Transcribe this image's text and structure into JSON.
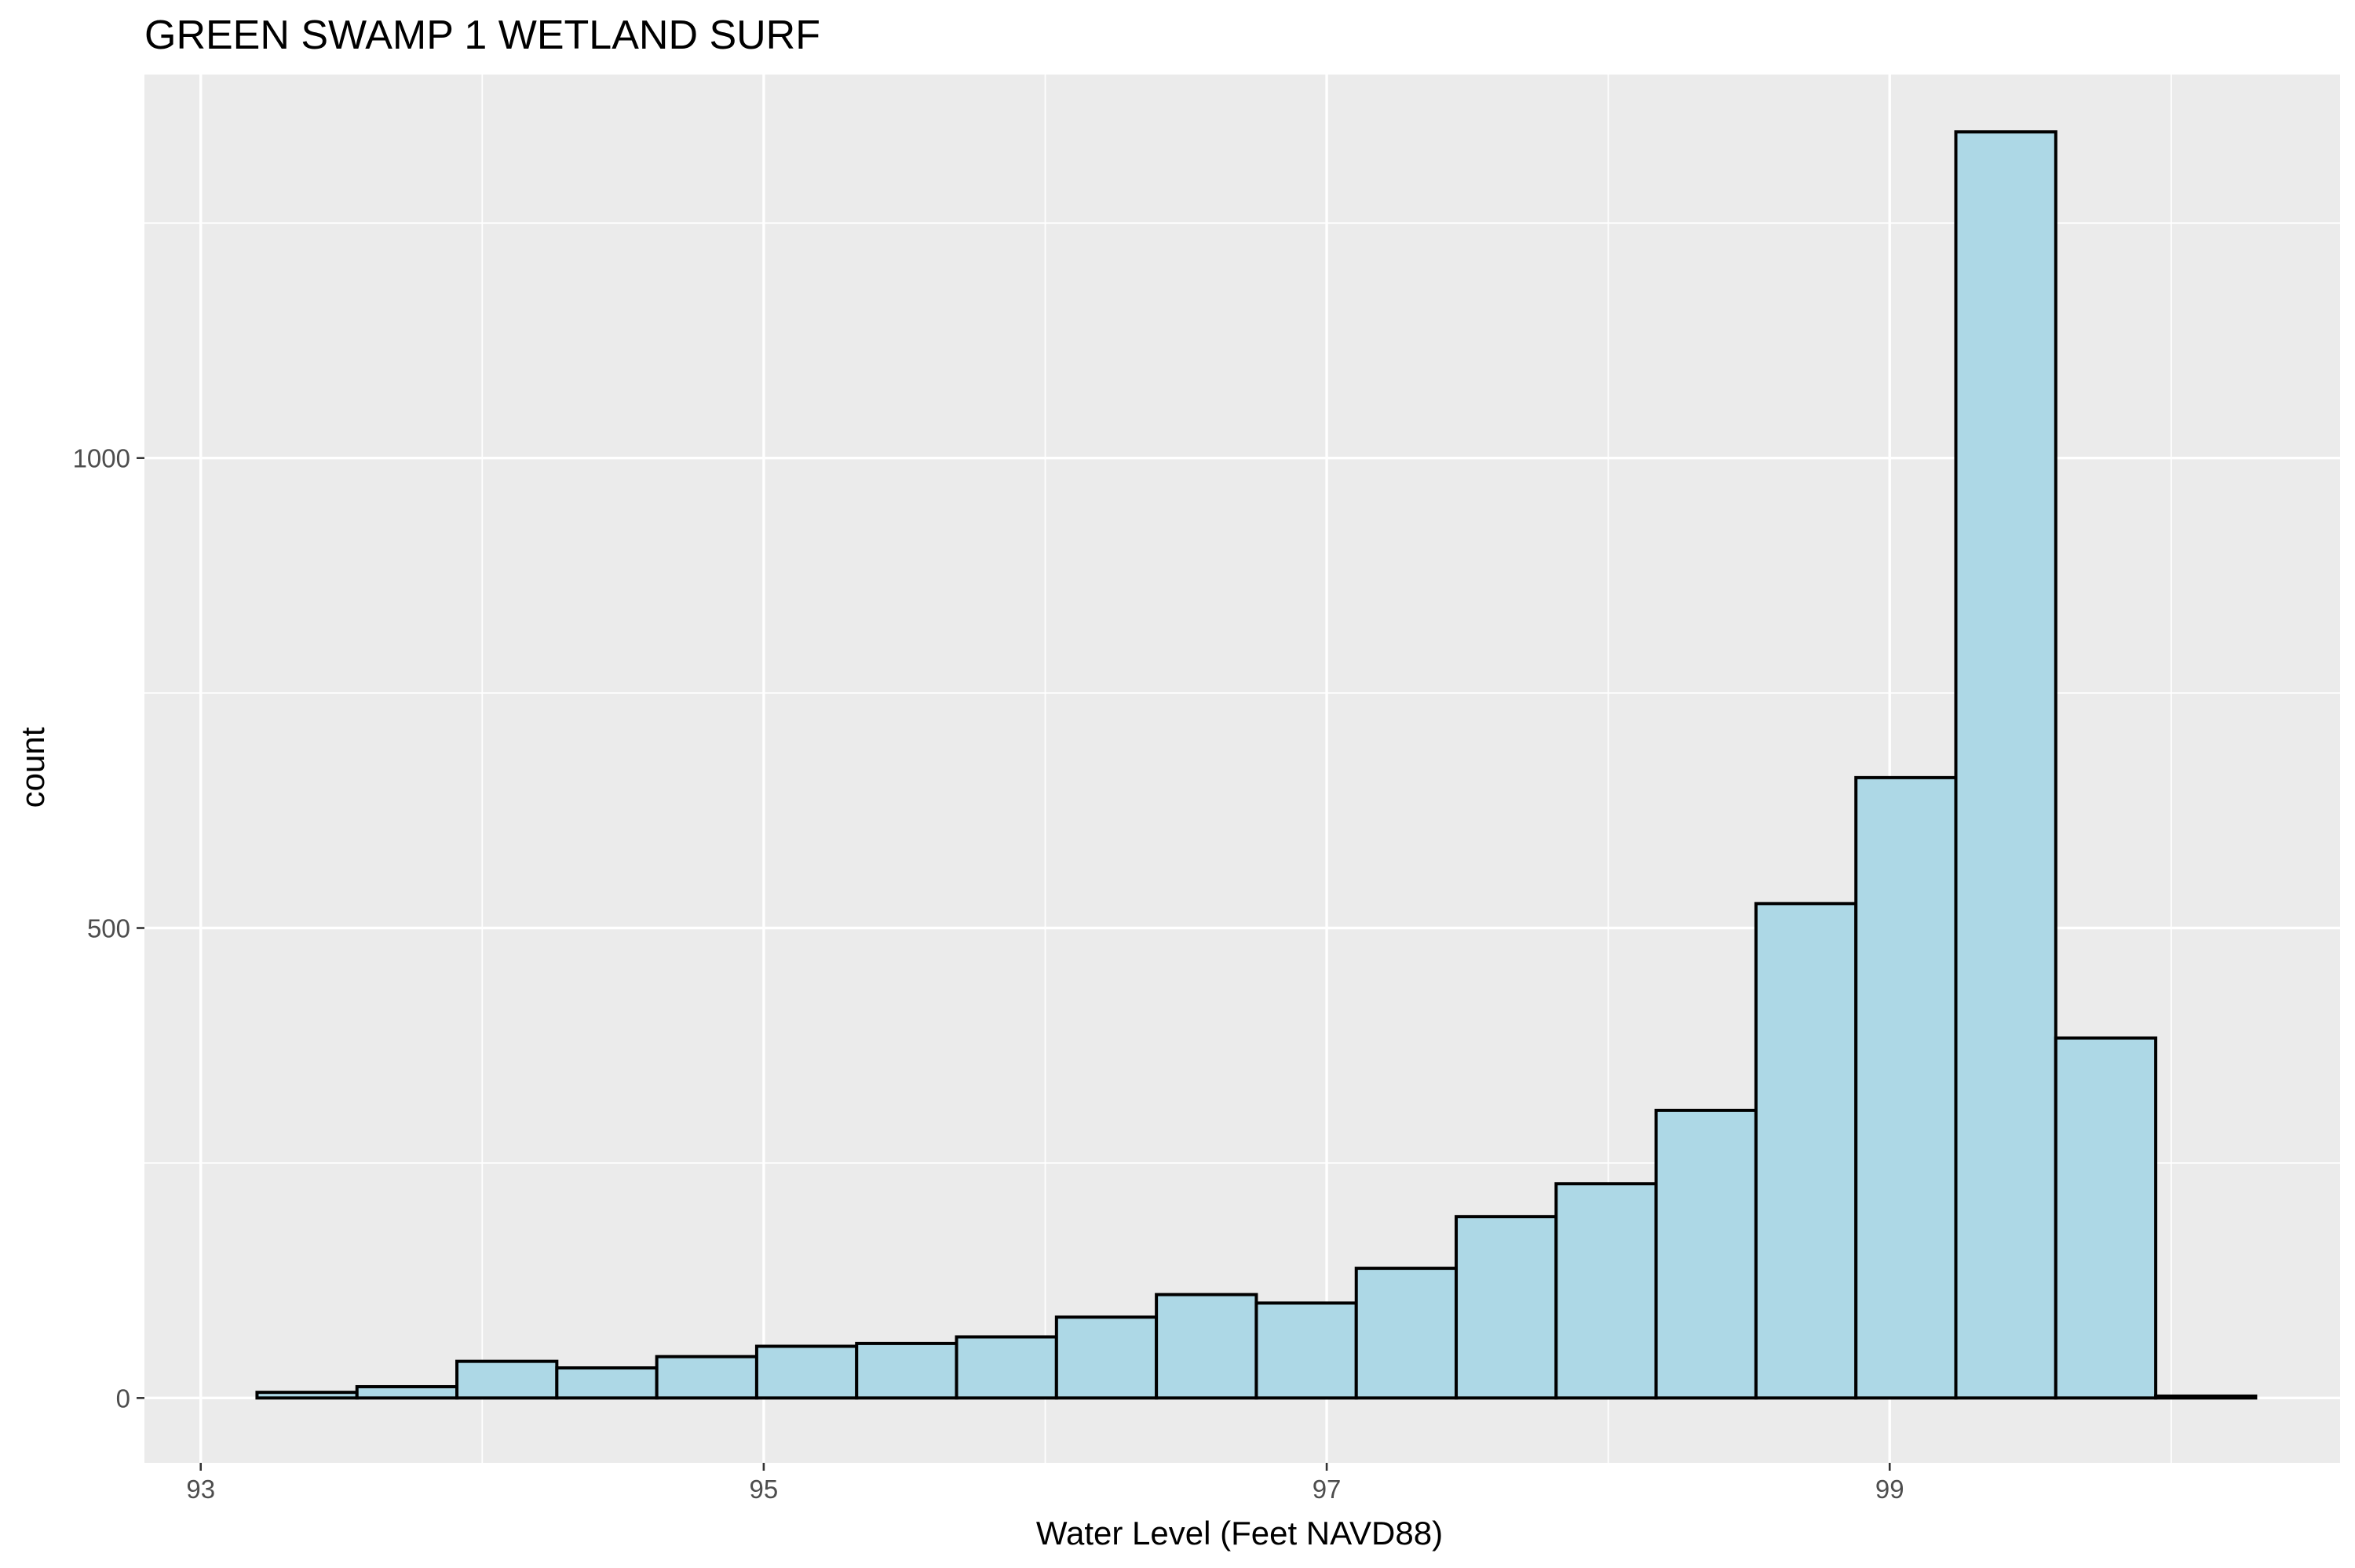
{
  "chart_data": {
    "type": "bar",
    "title": "GREEN SWAMP 1 WETLAND SURF",
    "xlabel": "Water Level (Feet NAVD88)",
    "ylabel": "count",
    "xlim": [
      92.8,
      100.6
    ],
    "ylim": [
      -69,
      1408
    ],
    "x_ticks": [
      93,
      95,
      97,
      99
    ],
    "y_ticks": [
      0,
      500,
      1000
    ],
    "grid": true,
    "bin_width": 0.355,
    "bins": [
      {
        "x_start": 93.2,
        "x_end": 93.555,
        "count": 6
      },
      {
        "x_start": 93.555,
        "x_end": 93.91,
        "count": 12
      },
      {
        "x_start": 93.91,
        "x_end": 94.265,
        "count": 39
      },
      {
        "x_start": 94.265,
        "x_end": 94.62,
        "count": 32
      },
      {
        "x_start": 94.62,
        "x_end": 94.975,
        "count": 44
      },
      {
        "x_start": 94.975,
        "x_end": 95.33,
        "count": 55
      },
      {
        "x_start": 95.33,
        "x_end": 95.685,
        "count": 58
      },
      {
        "x_start": 95.685,
        "x_end": 96.04,
        "count": 65
      },
      {
        "x_start": 96.04,
        "x_end": 96.395,
        "count": 86
      },
      {
        "x_start": 96.395,
        "x_end": 96.75,
        "count": 110
      },
      {
        "x_start": 96.75,
        "x_end": 97.105,
        "count": 101
      },
      {
        "x_start": 97.105,
        "x_end": 97.46,
        "count": 138
      },
      {
        "x_start": 97.46,
        "x_end": 97.815,
        "count": 193
      },
      {
        "x_start": 97.815,
        "x_end": 98.17,
        "count": 228
      },
      {
        "x_start": 98.17,
        "x_end": 98.525,
        "count": 306
      },
      {
        "x_start": 98.525,
        "x_end": 98.88,
        "count": 526
      },
      {
        "x_start": 98.88,
        "x_end": 99.235,
        "count": 660
      },
      {
        "x_start": 99.235,
        "x_end": 99.59,
        "count": 1347
      },
      {
        "x_start": 99.59,
        "x_end": 99.945,
        "count": 383
      },
      {
        "x_start": 99.945,
        "x_end": 100.3,
        "count": 2
      }
    ]
  }
}
